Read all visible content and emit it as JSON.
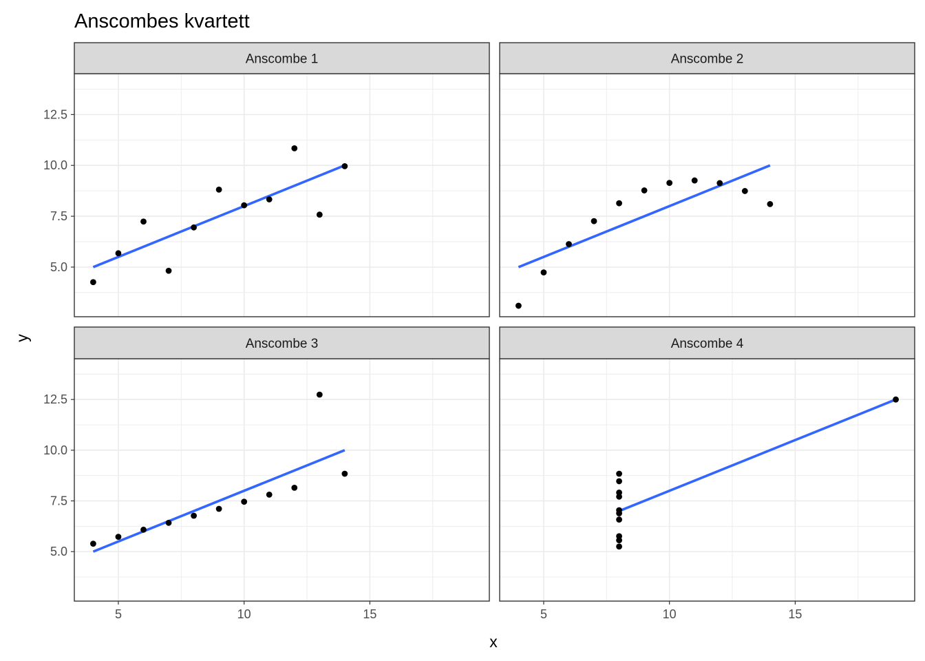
{
  "chart_data": {
    "type": "scatter",
    "title": "Anscombes kvartett",
    "xlabel": "x",
    "ylabel": "y",
    "xlim": [
      3.25,
      19.75
    ],
    "ylim": [
      2.56,
      14.51
    ],
    "x_ticks": [
      5,
      10,
      15
    ],
    "x_tick_labels": [
      "5",
      "10",
      "15"
    ],
    "y_ticks": [
      5,
      7.5,
      10,
      12.5
    ],
    "y_tick_labels": [
      "5.0",
      "7.5",
      "10.0",
      "12.5"
    ],
    "grid": true,
    "point_color": "#000000",
    "line_color": "#3366FF",
    "panel_background": "#ffffff",
    "strip_background": "#d9d9d9",
    "grid_color": "#ebebeb",
    "panels": [
      {
        "label": "Anscombe 1",
        "x": [
          10,
          8,
          13,
          9,
          11,
          14,
          6,
          4,
          12,
          7,
          5
        ],
        "y": [
          8.04,
          6.95,
          7.58,
          8.81,
          8.33,
          9.96,
          7.24,
          4.26,
          10.84,
          4.82,
          5.68
        ],
        "fit": {
          "x": [
            4,
            14
          ],
          "y": [
            5.0,
            10.0
          ]
        }
      },
      {
        "label": "Anscombe 2",
        "x": [
          10,
          8,
          13,
          9,
          11,
          14,
          6,
          4,
          12,
          7,
          5
        ],
        "y": [
          9.14,
          8.14,
          8.74,
          8.77,
          9.26,
          8.1,
          6.13,
          3.1,
          9.13,
          7.26,
          4.74
        ],
        "fit": {
          "x": [
            4,
            14
          ],
          "y": [
            5.0,
            10.0
          ]
        }
      },
      {
        "label": "Anscombe 3",
        "x": [
          10,
          8,
          13,
          9,
          11,
          14,
          6,
          4,
          12,
          7,
          5
        ],
        "y": [
          7.46,
          6.77,
          12.74,
          7.11,
          7.81,
          8.84,
          6.08,
          5.39,
          8.15,
          6.42,
          5.73
        ],
        "fit": {
          "x": [
            4,
            14
          ],
          "y": [
            5.0,
            10.0
          ]
        }
      },
      {
        "label": "Anscombe 4",
        "x": [
          8,
          8,
          8,
          8,
          8,
          8,
          8,
          19,
          8,
          8,
          8
        ],
        "y": [
          6.58,
          5.76,
          7.71,
          8.84,
          8.47,
          7.04,
          5.25,
          12.5,
          5.56,
          7.91,
          6.89
        ],
        "fit": {
          "x": [
            8,
            19
          ],
          "y": [
            7.0,
            12.5
          ]
        }
      }
    ]
  }
}
